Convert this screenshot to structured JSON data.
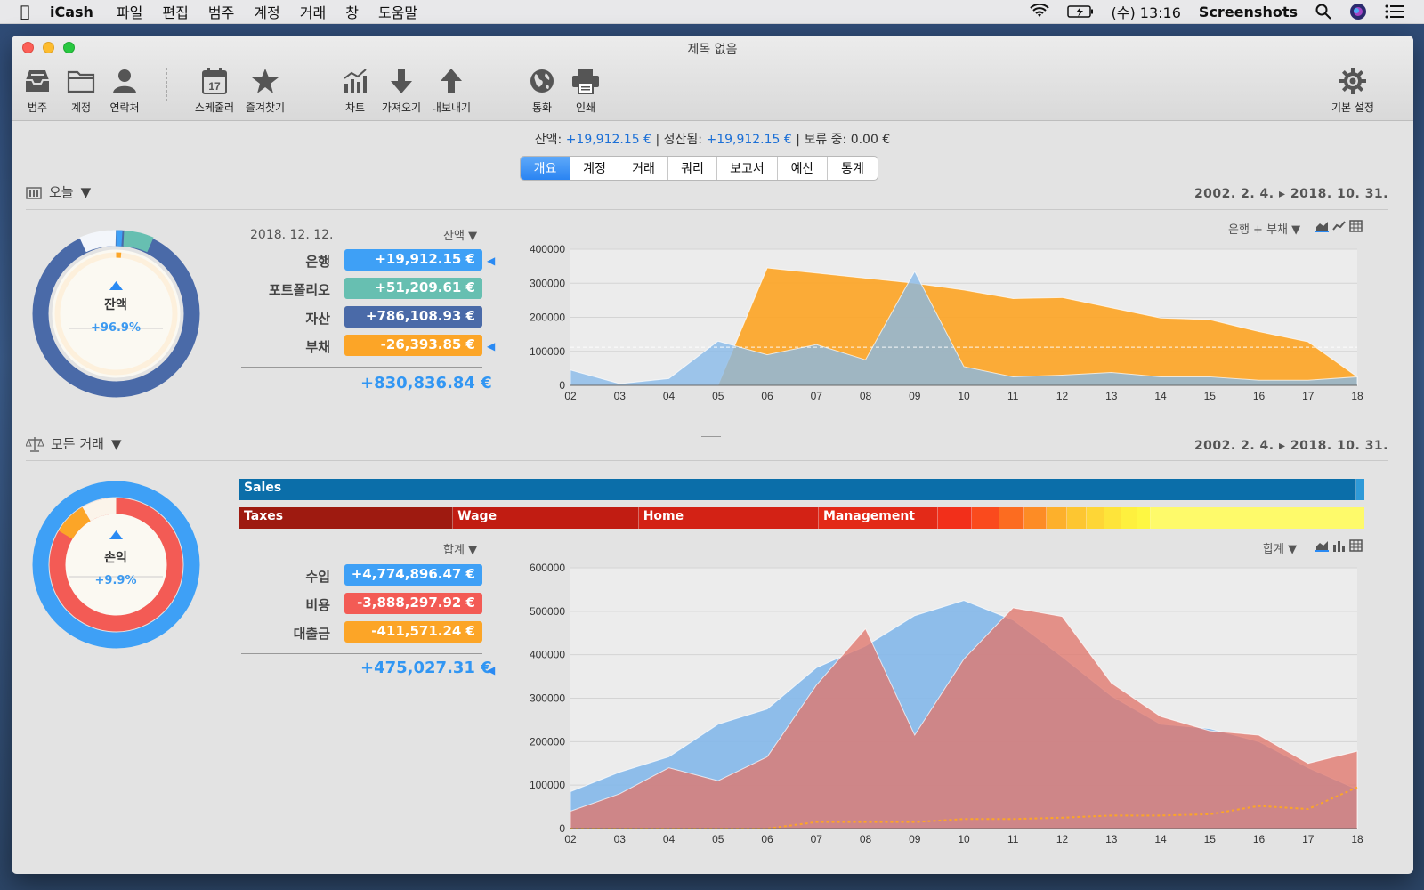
{
  "menubar": {
    "app": "iCash",
    "items": [
      "파일",
      "편집",
      "범주",
      "계정",
      "거래",
      "창",
      "도움말"
    ],
    "clock": "(수) 13:16",
    "screenshots": "Screenshots"
  },
  "window": {
    "title": "제목 없음"
  },
  "toolbar": {
    "categories": "범주",
    "accounts": "계정",
    "contacts": "연락처",
    "scheduler": "스케줄러",
    "scheduler_day": "17",
    "favorites": "즐겨찾기",
    "charts": "차트",
    "import": "가져오기",
    "export": "내보내기",
    "currency": "통화",
    "print": "인쇄",
    "preferences": "기본 설정"
  },
  "balance_bar": {
    "balance_label": "잔액:",
    "balance_value": "+19,912.15 €",
    "cleared_label": "정산됨:",
    "cleared_value": "+19,912.15 €",
    "pending_label": "보류 중:",
    "pending_value": "0.00 €",
    "sep": "|"
  },
  "tabs": [
    "개요",
    "계정",
    "거래",
    "쿼리",
    "보고서",
    "예산",
    "통계"
  ],
  "active_tab": 0,
  "top_section": {
    "title": "오늘",
    "date_range": "2002. 2. 4. ▸ 2018. 10. 31.",
    "date": "2018. 12. 12.",
    "sort_label": "잔액",
    "donut_title": "잔액",
    "donut_value": "+96.9%",
    "rows": [
      {
        "label": "은행",
        "value": "+19,912.15 €",
        "color": "#3ea0f6",
        "arrow": true
      },
      {
        "label": "포트폴리오",
        "value": "+51,209.61 €",
        "color": "#67bfb1",
        "arrow": false
      },
      {
        "label": "자산",
        "value": "+786,108.93 €",
        "color": "#4a6aa8",
        "arrow": false
      },
      {
        "label": "부채",
        "value": "-26,393.85 €",
        "color": "#fca527",
        "arrow": true
      }
    ],
    "total": "+830,836.84 €",
    "chart_selector": "은행 + 부채"
  },
  "bottom_section": {
    "title": "모든 거래",
    "date_range": "2002. 2. 4. ▸ 2018. 10. 31.",
    "sort_label": "합계",
    "donut_title": "손익",
    "donut_value": "+9.9%",
    "income_bar": [
      {
        "label": "Sales",
        "color": "#0b6ea9",
        "frac": 0.993
      }
    ],
    "expense_bar": [
      {
        "label": "Taxes",
        "color": "#9e1a10",
        "frac": 0.19
      },
      {
        "label": "Wage",
        "color": "#c11c12",
        "frac": 0.165
      },
      {
        "label": "Home",
        "color": "#d32215",
        "frac": 0.16
      },
      {
        "label": "Management",
        "color": "#e32a18",
        "frac": 0.106
      },
      {
        "label": "",
        "color": "#f22f1a",
        "frac": 0.03
      },
      {
        "label": "",
        "color": "#fa4a1d",
        "frac": 0.025
      },
      {
        "label": "",
        "color": "#fc6c20",
        "frac": 0.022
      },
      {
        "label": "",
        "color": "#fd8c25",
        "frac": 0.02
      },
      {
        "label": "",
        "color": "#fdb02b",
        "frac": 0.018
      },
      {
        "label": "",
        "color": "#fdc631",
        "frac": 0.017
      },
      {
        "label": "",
        "color": "#fed636",
        "frac": 0.016
      },
      {
        "label": "",
        "color": "#fee43a",
        "frac": 0.015
      },
      {
        "label": "",
        "color": "#fef03e",
        "frac": 0.014
      },
      {
        "label": "",
        "color": "#fef742",
        "frac": 0.012
      }
    ],
    "rows": [
      {
        "label": "수입",
        "value": "+4,774,896.47 €",
        "color": "#3ea0f6"
      },
      {
        "label": "비용",
        "value": "-3,888,297.92 €",
        "color": "#f35b55"
      },
      {
        "label": "대출금",
        "value": "-411,571.24 €",
        "color": "#fca527"
      }
    ],
    "total": "+475,027.31 €",
    "chart_selector": "합계"
  },
  "chart_data": [
    {
      "type": "area",
      "x": [
        "02",
        "03",
        "04",
        "05",
        "06",
        "07",
        "08",
        "09",
        "10",
        "11",
        "12",
        "13",
        "14",
        "15",
        "16",
        "17",
        "18"
      ],
      "ylim": [
        0,
        400000
      ],
      "yticks": [
        0,
        100000,
        200000,
        300000,
        400000
      ],
      "series": [
        {
          "color": "#fca527",
          "values": [
            0,
            0,
            0,
            0,
            345000,
            330000,
            315000,
            300000,
            280000,
            255000,
            258000,
            228000,
            198000,
            193000,
            158000,
            128000,
            25000
          ]
        },
        {
          "color": "#85b9e9",
          "values": [
            45000,
            5000,
            20000,
            130000,
            90000,
            120000,
            75000,
            335000,
            55000,
            25000,
            30000,
            38000,
            25000,
            25000,
            15000,
            15000,
            25000
          ]
        }
      ],
      "reference_line": 112000
    },
    {
      "type": "area",
      "x": [
        "02",
        "03",
        "04",
        "05",
        "06",
        "07",
        "08",
        "09",
        "10",
        "11",
        "12",
        "13",
        "14",
        "15",
        "16",
        "17",
        "18"
      ],
      "ylim": [
        0,
        600000
      ],
      "yticks": [
        0,
        100000,
        200000,
        300000,
        400000,
        500000,
        600000
      ],
      "series": [
        {
          "color": "#85b9e9",
          "values": [
            85000,
            130000,
            165000,
            240000,
            275000,
            370000,
            420000,
            490000,
            525000,
            480000,
            395000,
            305000,
            240000,
            230000,
            200000,
            140000,
            90000
          ]
        },
        {
          "color": "#e0766c",
          "values": [
            40000,
            80000,
            140000,
            110000,
            165000,
            330000,
            460000,
            215000,
            390000,
            508000,
            488000,
            335000,
            258000,
            225000,
            215000,
            150000,
            178000
          ]
        },
        {
          "color": "#fca527",
          "line": true,
          "values": [
            0,
            0,
            0,
            0,
            0,
            15000,
            15000,
            15000,
            22000,
            22000,
            25000,
            30000,
            30000,
            33000,
            52000,
            45000,
            95000
          ]
        }
      ]
    }
  ]
}
